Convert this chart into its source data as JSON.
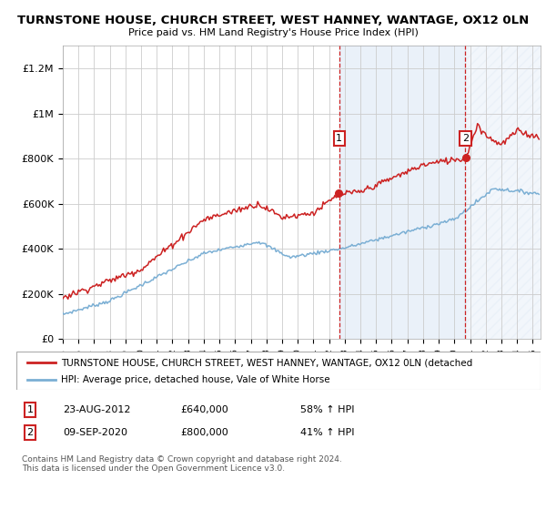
{
  "title": "TURNSTONE HOUSE, CHURCH STREET, WEST HANNEY, WANTAGE, OX12 0LN",
  "subtitle": "Price paid vs. HM Land Registry's House Price Index (HPI)",
  "ylim": [
    0,
    1300000
  ],
  "yticks": [
    0,
    200000,
    400000,
    600000,
    800000,
    1000000,
    1200000
  ],
  "ytick_labels": [
    "£0",
    "£200K",
    "£400K",
    "£600K",
    "£800K",
    "£1M",
    "£1.2M"
  ],
  "hpi_color": "#7bafd4",
  "price_color": "#cc2222",
  "marker1_year": 2012.65,
  "marker1_price": 640000,
  "marker1_date": "23-AUG-2012",
  "marker1_pct": "58% ↑ HPI",
  "marker2_year": 2020.69,
  "marker2_price": 800000,
  "marker2_date": "09-SEP-2020",
  "marker2_pct": "41% ↑ HPI",
  "legend_line1": "TURNSTONE HOUSE, CHURCH STREET, WEST HANNEY, WANTAGE, OX12 0LN (detached",
  "legend_line2": "HPI: Average price, detached house, Vale of White Horse",
  "footnote": "Contains HM Land Registry data © Crown copyright and database right 2024.\nThis data is licensed under the Open Government Licence v3.0.",
  "bg_shaded_color": "#dce8f5",
  "vline_color": "#cc2222",
  "grid_color": "#cccccc",
  "box_edge_color": "#cc2222"
}
